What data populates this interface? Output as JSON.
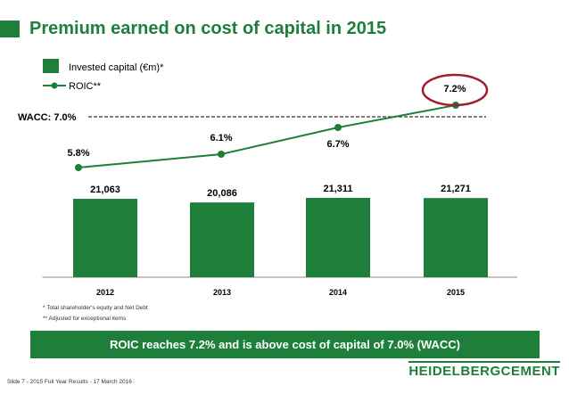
{
  "slide": {
    "title": "Premium earned on cost of capital in 2015",
    "footnotes": [
      "*   Total shareholder's equity and Net Debt",
      "**  Adjusted for exceptional items"
    ],
    "banner": "ROIC reaches 7.2% and is above cost of capital of 7.0% (WACC)",
    "footer": "Slide 7 - 2015 Full Year Results - 17 March 2016",
    "logo": "HEIDELBERGCEMENT"
  },
  "colors": {
    "brand_green": "#1e7f3a",
    "wacc_line": "#555555",
    "highlight_circle": "#a11c2c"
  },
  "chart_data": {
    "type": "bar",
    "categories": [
      "2012",
      "2013",
      "2014",
      "2015"
    ],
    "series": [
      {
        "name": "Invested capital (€m)*",
        "type": "bar",
        "values": [
          21063,
          20086,
          21311,
          21271
        ],
        "labels": [
          "21,063",
          "20,086",
          "21,311",
          "21,271"
        ]
      },
      {
        "name": "ROIC**",
        "type": "line",
        "values": [
          5.8,
          6.1,
          6.7,
          7.2
        ],
        "labels": [
          "5.8%",
          "6.1%",
          "6.7%",
          "7.2%"
        ]
      }
    ],
    "reference_line": {
      "label": "WACC: 7.0%",
      "value": 7.0
    },
    "legend_position": "top-left",
    "highlighted_point": "2015"
  }
}
